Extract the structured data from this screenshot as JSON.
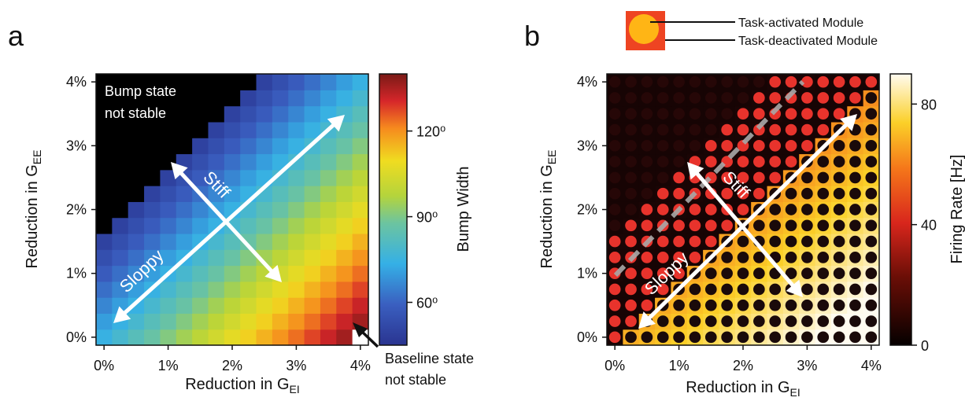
{
  "chart_data": [
    {
      "panel": "a",
      "type": "heatmap",
      "xlabel": "Reduction in G",
      "xlabel_sub": "EI",
      "ylabel": "Reduction in G",
      "ylabel_sub": "EE",
      "xticks": [
        "0%",
        "1%",
        "2%",
        "3%",
        "4%"
      ],
      "yticks": [
        "0%",
        "1%",
        "2%",
        "3%",
        "4%"
      ],
      "xlim": [
        0,
        4
      ],
      "ylim": [
        0,
        4
      ],
      "grid_size": 17,
      "colorbar": {
        "label": "Bump Width",
        "ticks": [
          "60⁰",
          "90⁰",
          "120⁰"
        ],
        "tick_values": [
          60,
          90,
          120
        ],
        "range": [
          45,
          140
        ],
        "colormap": "jet"
      },
      "annotations": {
        "unstable_bump": [
          "Bump state",
          "not stable"
        ],
        "unstable_baseline": [
          "Baseline state",
          "not stable"
        ],
        "sloppy": "Sloppy",
        "stiff": "Stiff"
      },
      "region_rule": "black (bump not stable) where GEE reduction exceeds roughly GEI reduction + 1.5%; white (baseline not stable) at GEI 4%, GEE 0%",
      "value_trend": "bump width rises from about 52 at top-left to about 140 at bottom-right along the stiff direction"
    },
    {
      "panel": "b",
      "type": "heatmap",
      "xlabel": "Reduction in G",
      "xlabel_sub": "EI",
      "ylabel": "Reduction in G",
      "ylabel_sub": "EE",
      "xticks": [
        "0%",
        "1%",
        "2%",
        "3%",
        "4%"
      ],
      "yticks": [
        "0%",
        "1%",
        "2%",
        "3%",
        "4%"
      ],
      "xlim": [
        0,
        4
      ],
      "ylim": [
        0,
        4
      ],
      "grid_size": 17,
      "colorbar": {
        "label": "Firing Rate [Hz]",
        "ticks": [
          "0",
          "40",
          "80"
        ],
        "tick_values": [
          0,
          40,
          80
        ],
        "range": [
          0,
          90
        ],
        "colormap": "hot"
      },
      "legend": {
        "inner_circle": "Task-activated Module",
        "outer_square": "Task-deactivated Module"
      },
      "annotations": {
        "sloppy": "Sloppy",
        "stiff": "Stiff"
      }
    }
  ],
  "panel_labels": [
    "a",
    "b"
  ],
  "colors": {
    "unstable": "#000000",
    "dashed_line": "#a8a8a8",
    "arrows": "#ffffff",
    "active_circle": "#e8332c",
    "legend_square": "#ee4422",
    "legend_circle": "#ffb515"
  }
}
